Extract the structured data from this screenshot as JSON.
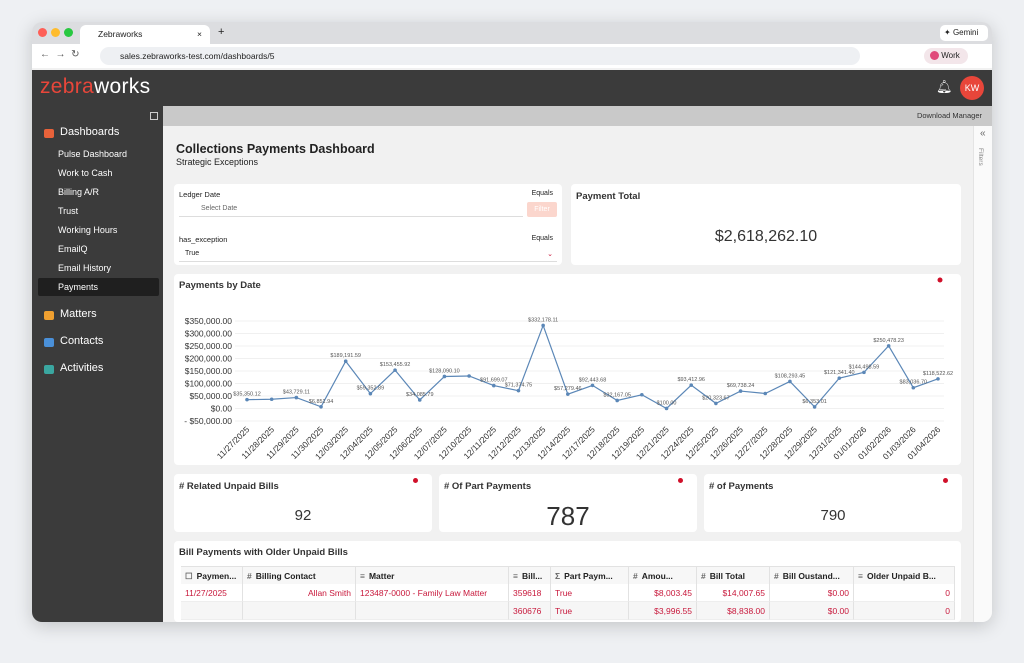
{
  "browser": {
    "tab_title": "Zebraworks",
    "url": "sales.zebraworks-test.com/dashboards/5",
    "gemini": "Gemini",
    "profile": "Work"
  },
  "app": {
    "logo_a": "zebra",
    "logo_b": "works",
    "avatar": "KW",
    "download": "Download Manager",
    "filters": "Filters"
  },
  "sidebar": {
    "sections": [
      {
        "label": "Dashboards",
        "color": "#e8623a",
        "items": [
          "Pulse Dashboard",
          "Work to Cash",
          "Billing A/R",
          "Trust",
          "Working Hours",
          "EmailQ",
          "Email History",
          "Payments"
        ]
      },
      {
        "label": "Matters",
        "color": "#f0a030",
        "items": []
      },
      {
        "label": "Contacts",
        "color": "#4a90d9",
        "items": []
      },
      {
        "label": "Activities",
        "color": "#3aa6a0",
        "items": []
      }
    ],
    "active": "Payments"
  },
  "page": {
    "title": "Collections Payments Dashboard",
    "subtitle": "Strategic Exceptions"
  },
  "filters": [
    {
      "label": "Ledger Date",
      "op": "Equals",
      "value": "Select Date",
      "button": "Filter"
    },
    {
      "label": "has_exception",
      "op": "Equals",
      "value": "True"
    }
  ],
  "kpis": {
    "total": {
      "title": "Payment Total",
      "value": "$2,618,262.10"
    },
    "cards": [
      {
        "title": "# Related Unpaid Bills",
        "value": 92
      },
      {
        "title": "# Of Part Payments",
        "value": 787
      },
      {
        "title": "# of Payments",
        "value": 790
      }
    ]
  },
  "chart_data": {
    "type": "line",
    "title": "Payments by Date",
    "categories": [
      "11/27/2025",
      "11/28/2025",
      "11/29/2025",
      "11/30/2025",
      "12/03/2025",
      "12/04/2025",
      "12/05/2025",
      "12/06/2025",
      "12/07/2025",
      "12/10/2025",
      "12/11/2025",
      "12/12/2025",
      "12/13/2025",
      "12/14/2025",
      "12/17/2025",
      "12/18/2025",
      "12/19/2025",
      "12/21/2025",
      "12/24/2025",
      "12/25/2025",
      "12/26/2025",
      "12/27/2025",
      "12/28/2025",
      "12/29/2025",
      "12/31/2025",
      "01/01/2026",
      "01/02/2026",
      "01/03/2026",
      "01/04/2026"
    ],
    "series": [
      {
        "name": "Payments",
        "color": "#5b87b7",
        "values": [
          35350.12,
          37000,
          43729.11,
          6851.94,
          189191.59,
          59352.89,
          153455.92,
          34085.79,
          128090.1,
          130000,
          91699.07,
          71374.75,
          332178.11,
          57279.46,
          92443.68,
          32167.05,
          55000,
          100.0,
          93412.96,
          20323.67,
          69738.24,
          60000,
          108293.45,
          6353.01,
          121341.4,
          144498.59,
          250478.23,
          83036.7,
          118522.62
        ],
        "value_labels": [
          "$35,350.12",
          null,
          "$43,729.11",
          "$6,851.94",
          "$189,191.59",
          "$59,352.89",
          "$153,455.92",
          "$34,085.79",
          "$128,090.10",
          null,
          "$91,699.07",
          "$71,374.75",
          "$332,178.11",
          "$57,279.46",
          "$92,443.68",
          "$32,167.05",
          null,
          "$100.00",
          "$93,412.96",
          "$20,323.67",
          "$69,738.24",
          null,
          "$108,293.45",
          "$6,353.01",
          "$121,341.40",
          "$144,498.59",
          "$250,478.23",
          "$83,036.70",
          "$118,522.62"
        ]
      }
    ],
    "ylim": [
      -50000,
      360000
    ],
    "yticks": [
      {
        "value": -50000,
        "label": "- $50,000.00"
      },
      {
        "value": 0,
        "label": "$0.00"
      },
      {
        "value": 50000,
        "label": "$50,000.00"
      },
      {
        "value": 100000,
        "label": "$100,000.00"
      },
      {
        "value": 150000,
        "label": "$150,000.00"
      },
      {
        "value": 200000,
        "label": "$200,000.00"
      },
      {
        "value": 250000,
        "label": "$250,000.00"
      },
      {
        "value": 300000,
        "label": "$300,000.00"
      },
      {
        "value": 350000,
        "label": "$350,000.00"
      }
    ],
    "grid": true
  },
  "table": {
    "title": "Bill Payments with Older Unpaid Bills",
    "columns": [
      {
        "icon": "☐",
        "label": "Paymen..."
      },
      {
        "icon": "#",
        "label": "Billing Contact"
      },
      {
        "icon": "≡",
        "label": "Matter"
      },
      {
        "icon": "≡",
        "label": "Bill..."
      },
      {
        "icon": "Σ",
        "label": "Part Paym..."
      },
      {
        "icon": "#",
        "label": "Amou..."
      },
      {
        "icon": "#",
        "label": "Bill Total"
      },
      {
        "icon": "#",
        "label": "Bill Oustand..."
      },
      {
        "icon": "≡",
        "label": "Older Unpaid B..."
      }
    ],
    "rows": [
      [
        "11/27/2025",
        "Allan Smith",
        "123487-0000 - Family Law Matter",
        "359618",
        "True",
        "$8,003.45",
        "$14,007.65",
        "$0.00",
        "0"
      ],
      [
        null,
        null,
        null,
        "360676",
        "True",
        "$3,996.55",
        "$8,838.00",
        "$0.00",
        "0"
      ]
    ]
  }
}
